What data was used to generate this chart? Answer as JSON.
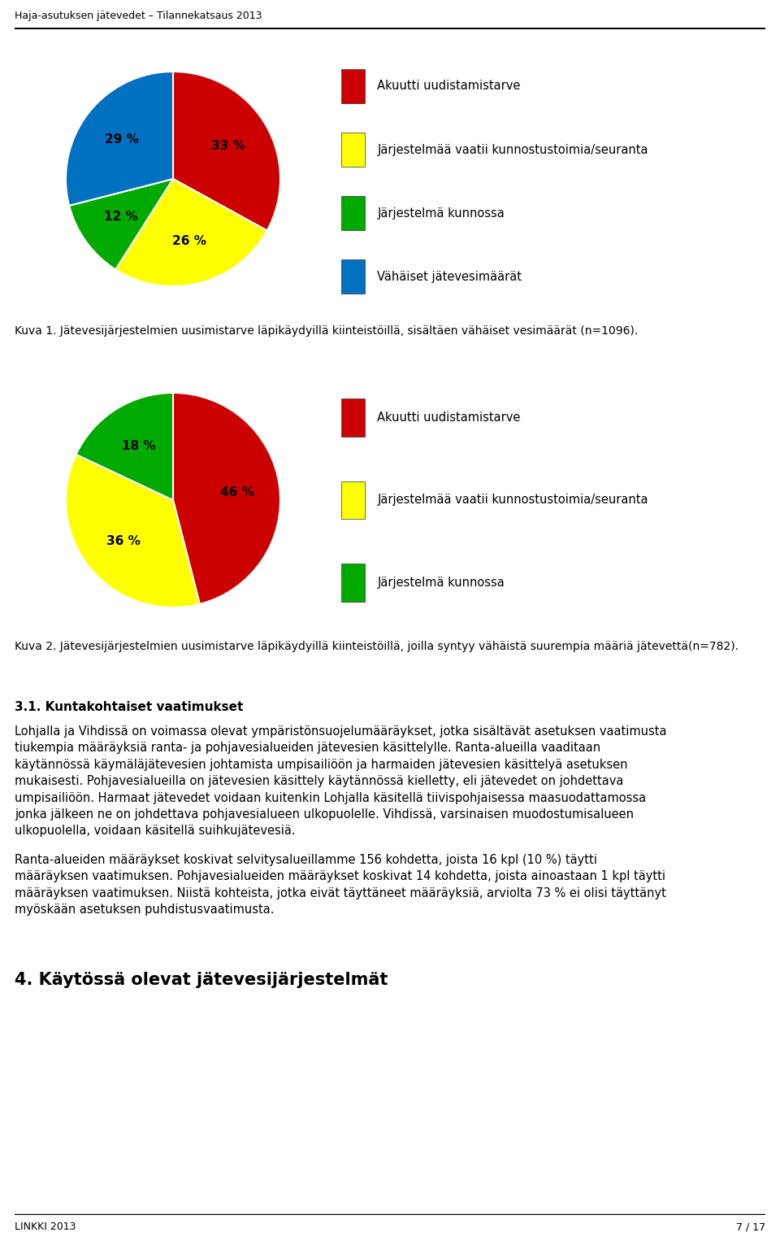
{
  "header_title": "Haja-asutuksen jätevedet – Tilannekatsaus 2013",
  "pie1": {
    "values": [
      33,
      26,
      12,
      29
    ],
    "colors": [
      "#cc0000",
      "#ffff00",
      "#00aa00",
      "#0070c0"
    ],
    "labels": [
      "33 %",
      "26 %",
      "12 %",
      "29 %"
    ],
    "legend": [
      "Akuutti uudistamistarve",
      "Järjestelmää vaatii kunnostustoimia/seuranta",
      "Järjestelmä kunnossa",
      "Vähäiset jätevesimäärät"
    ],
    "caption": "Kuva 1. Jätevesijärjestelmien uusimistarve läpikäydyillä kiinteistöillä, sisältäen vähäiset vesimäärät (n=1096)."
  },
  "pie2": {
    "values": [
      46,
      36,
      18
    ],
    "colors": [
      "#cc0000",
      "#ffff00",
      "#00aa00"
    ],
    "labels": [
      "46 %",
      "36 %",
      "18 %"
    ],
    "legend": [
      "Akuutti uudistamistarve",
      "Järjestelmää vaatii kunnostustoimia/seuranta",
      "Järjestelmä kunnossa"
    ],
    "caption": "Kuva 2. Jätevesijärjestelmien uusimistarve läpikäydyillä kiinteistöillä, joilla syntyy vähäistä suurempia määriä jätevettä(n=782)."
  },
  "section_heading": "3.1. Kuntakohtaiset vaatimukset",
  "body_para1_lines": [
    "Lohjalla ja Vihdissä on voimassa olevat ympäristönsuojelumääräykset, jotka sisältävät asetuksen vaatimusta",
    "tiukempia määräyksiä ranta- ja pohjavesialueiden jätevesien käsittelylle. Ranta-alueilla vaaditaan",
    "käytännössä käymäläjätevesien johtamista umpisailiöön ja harmaiden jätevesien käsittelyä asetuksen",
    "mukaisesti. Pohjavesialueilla on jätevesien käsittely käytännössä kielletty, eli jätevedet on johdettava",
    "umpisailiöön. Harmaat jätevedet voidaan kuitenkin Lohjalla käsitellä tiivispohjaisessa maasuodattamossa",
    "jonka jälkeen ne on johdettava pohjavesialueen ulkopuolelle. Vihdissä, varsinaisen muodostumisalueen",
    "ulkopuolella, voidaan käsitellä suihkujätevesiä."
  ],
  "body_para2_lines": [
    "Ranta-alueiden määräykset koskivat selvitysalueillamme 156 kohdetta, joista 16 kpl (10 %) täytti",
    "määräyksen vaatimuksen. Pohjavesialueiden määräykset koskivat 14 kohdetta, joista ainoastaan 1 kpl täytti",
    "määräyksen vaatimuksen. Niistä kohteista, jotka eivät täyttäneet määräyksiä, arviolta 73 % ei olisi täyttänyt",
    "myöskään asetuksen puhdistusvaatimusta."
  ],
  "chapter_heading": "4. Käytössä olevat jätevesijärjestelmät",
  "footer_left": "LINKKI 2013",
  "footer_right": "7 / 17",
  "bg_color": "#ffffff",
  "pie_label_fontsize": 11,
  "legend_fontsize": 10.5,
  "caption_fontsize": 10,
  "body_fontsize": 10.5,
  "section_heading_fontsize": 11,
  "chapter_heading_fontsize": 15
}
